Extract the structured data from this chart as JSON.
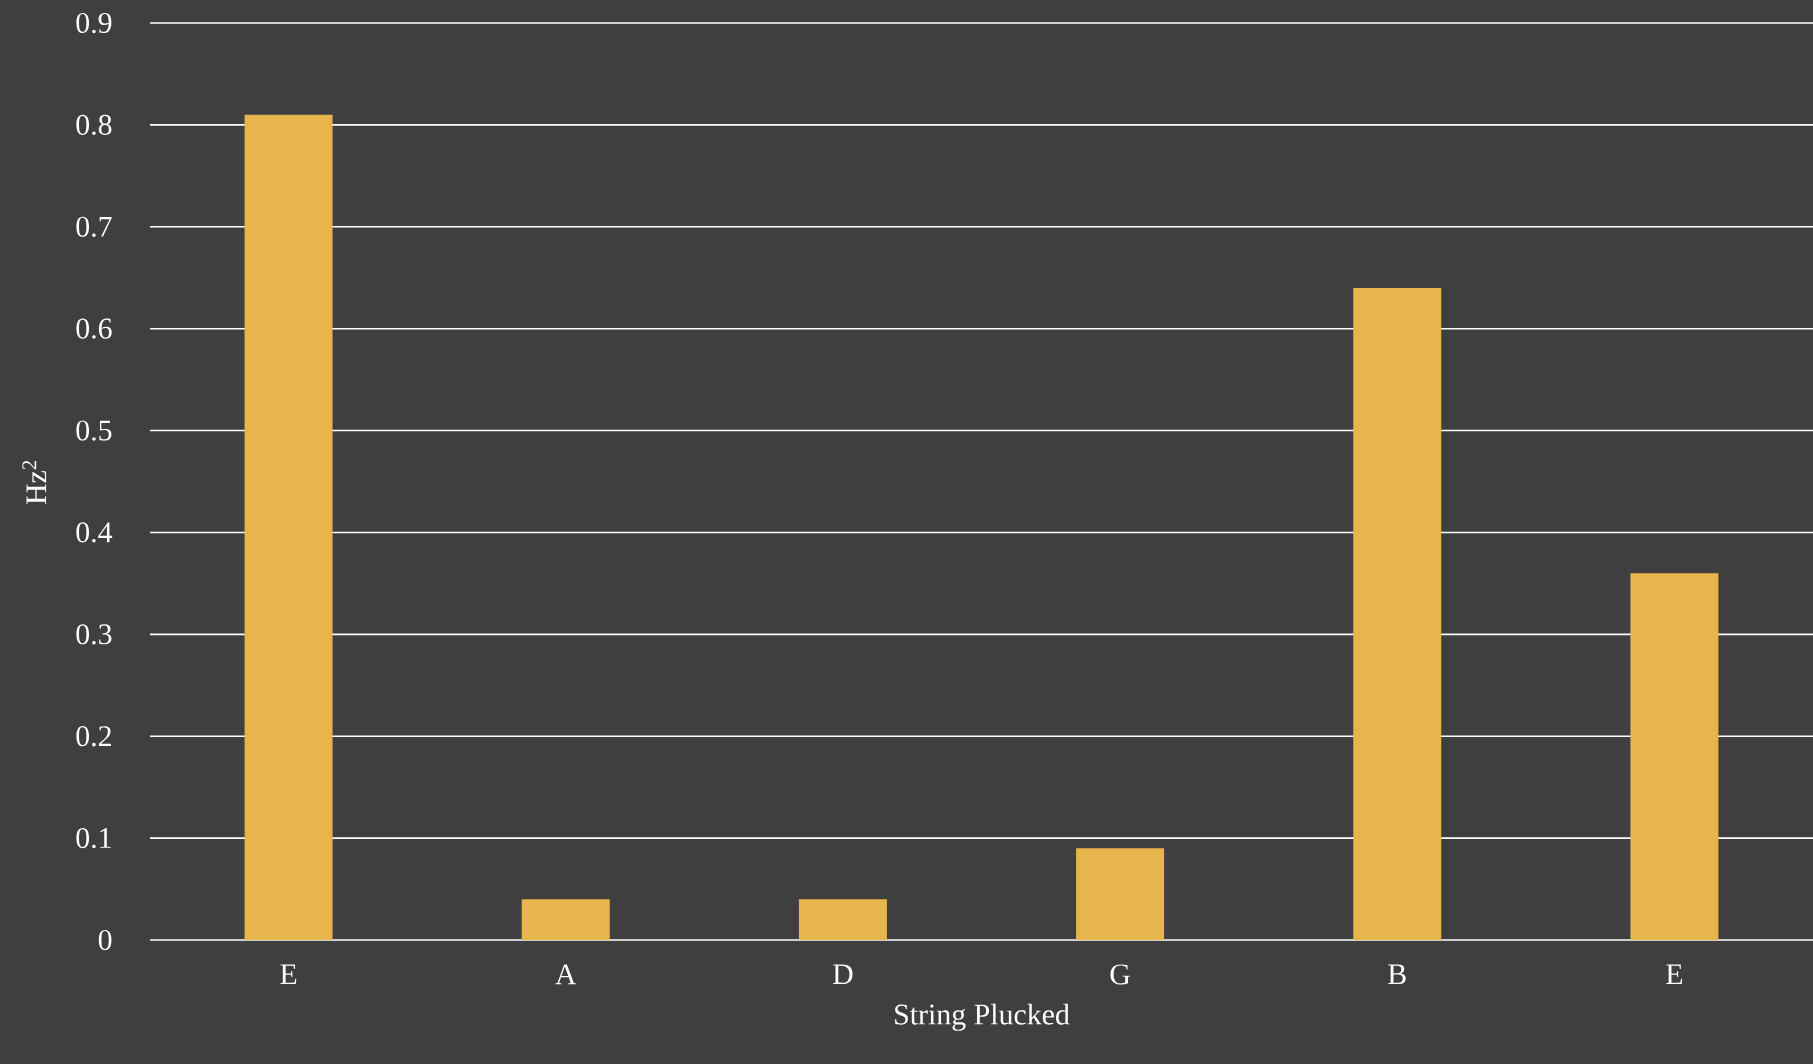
{
  "chart_data": {
    "type": "bar",
    "xlabel": "String Plucked",
    "ylabel": "Hz$^{2}$",
    "categories": [
      "E",
      "A",
      "D",
      "G",
      "B",
      "E"
    ],
    "values": [
      0.81,
      0.04,
      0.04,
      0.09,
      0.64,
      0.36
    ],
    "color": "#e8b54c",
    "ylim": [
      0,
      0.9
    ],
    "yticks": [
      0,
      0.1,
      0.2,
      0.3,
      0.4,
      0.5,
      0.6,
      0.7,
      0.8,
      0.9
    ],
    "grid": "y"
  }
}
